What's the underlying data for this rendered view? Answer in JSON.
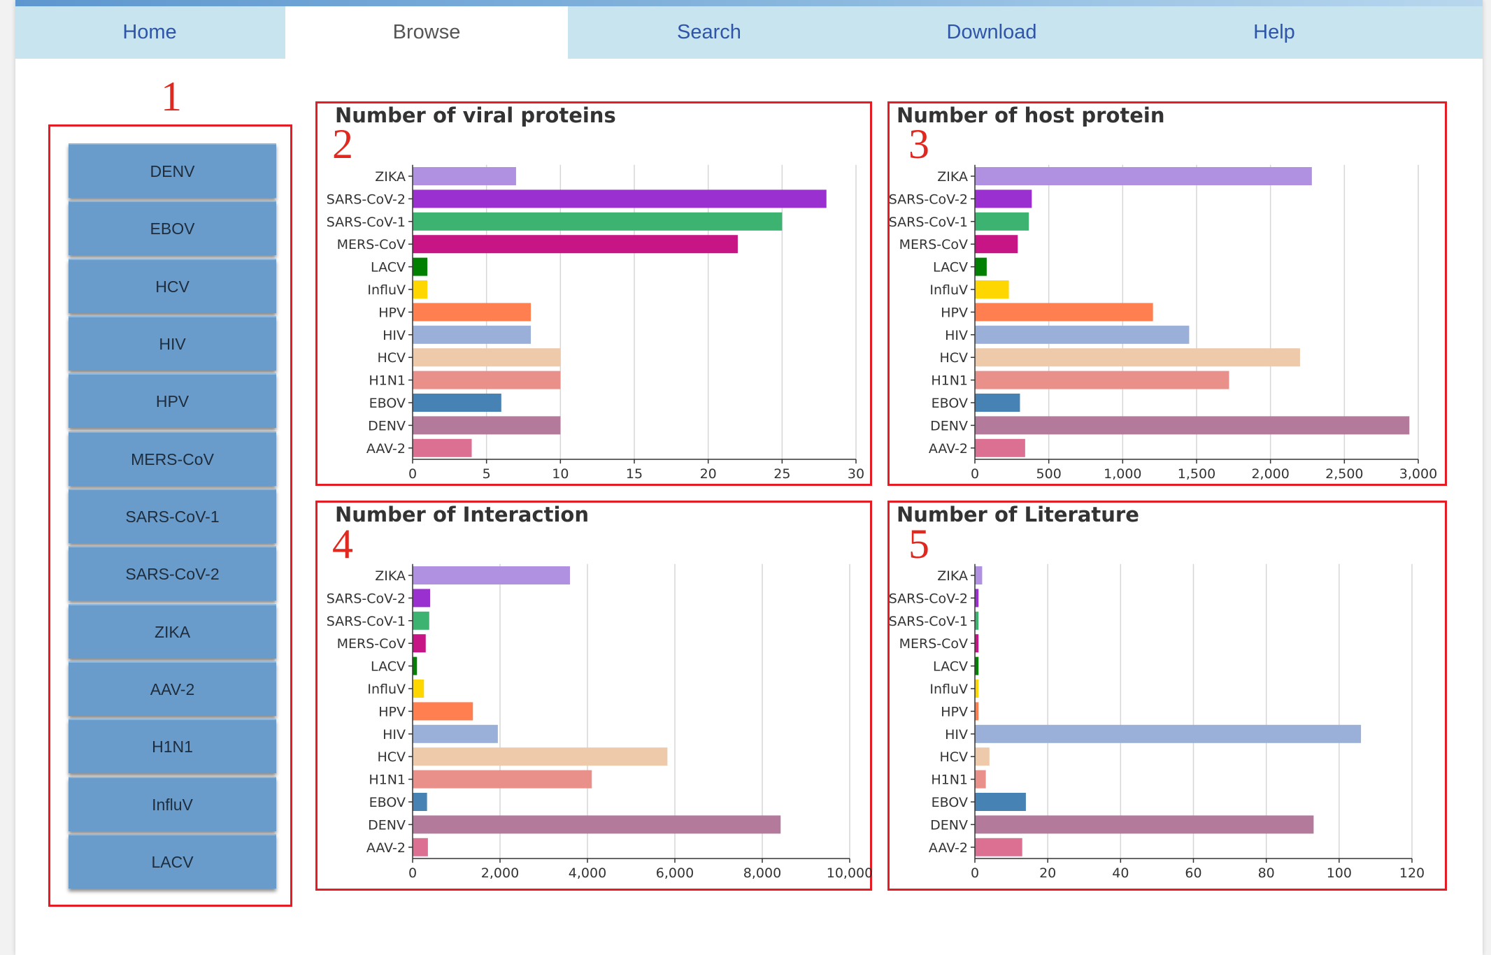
{
  "nav": {
    "tabs": [
      {
        "label": "Home",
        "active": false
      },
      {
        "label": "Browse",
        "active": true
      },
      {
        "label": "Search",
        "active": false
      },
      {
        "label": "Download",
        "active": false
      },
      {
        "label": "Help",
        "active": false
      }
    ]
  },
  "annotations": [
    "1",
    "2",
    "3",
    "4",
    "5"
  ],
  "sidebar": {
    "buttons": [
      "DENV",
      "EBOV",
      "HCV",
      "HIV",
      "HPV",
      "MERS-CoV",
      "SARS-CoV-1",
      "SARS-CoV-2",
      "ZIKA",
      "AAV-2",
      "H1N1",
      "InfluV",
      "LACV"
    ]
  },
  "colors": {
    "accent_red": "#e51c23",
    "tab_bg": "#c7e4ef",
    "tab_text": "#2f55a8",
    "button_bg": "#6a9ccb",
    "series": {
      "ZIKA": "#b090e0",
      "SARS-CoV-2": "#9b30d0",
      "SARS-CoV-1": "#3cb371",
      "MERS-CoV": "#c71585",
      "LACV": "#008000",
      "InfluV": "#ffd700",
      "HPV": "#ff7f50",
      "HIV": "#9ab0d8",
      "HCV": "#eecaaa",
      "H1N1": "#e9908a",
      "EBOV": "#4682b4",
      "DENV": "#b47a9c",
      "AAV-2": "#db7093"
    }
  },
  "chart_data": [
    {
      "type": "bar",
      "orientation": "horizontal",
      "title": "Number of viral proteins",
      "categories": [
        "ZIKA",
        "SARS-CoV-2",
        "SARS-CoV-1",
        "MERS-CoV",
        "LACV",
        "InfluV",
        "HPV",
        "HIV",
        "HCV",
        "H1N1",
        "EBOV",
        "DENV",
        "AAV-2"
      ],
      "values": [
        7,
        28,
        25,
        22,
        1,
        1,
        8,
        8,
        10,
        10,
        6,
        10,
        4
      ],
      "xlim": [
        0,
        30
      ],
      "ticks": [
        0,
        5,
        10,
        15,
        20,
        25,
        30
      ],
      "tick_labels": [
        "0",
        "5",
        "10",
        "15",
        "20",
        "25",
        "30"
      ],
      "grid": true
    },
    {
      "type": "bar",
      "orientation": "horizontal",
      "title": "Number of host protein",
      "categories": [
        "ZIKA",
        "SARS-CoV-2",
        "SARS-CoV-1",
        "MERS-CoV",
        "LACV",
        "InfluV",
        "HPV",
        "HIV",
        "HCV",
        "H1N1",
        "EBOV",
        "DENV",
        "AAV-2"
      ],
      "values": [
        2280,
        385,
        365,
        290,
        80,
        230,
        1205,
        1450,
        2200,
        1720,
        305,
        2940,
        340
      ],
      "xlim": [
        0,
        3000
      ],
      "ticks": [
        0,
        500,
        1000,
        1500,
        2000,
        2500,
        3000
      ],
      "tick_labels": [
        "0",
        "500",
        "1,000",
        "1,500",
        "2,000",
        "2,500",
        "3,000"
      ],
      "grid": true
    },
    {
      "type": "bar",
      "orientation": "horizontal",
      "title": "Number of Interaction",
      "categories": [
        "ZIKA",
        "SARS-CoV-2",
        "SARS-CoV-1",
        "MERS-CoV",
        "LACV",
        "InfluV",
        "HPV",
        "HIV",
        "HCV",
        "H1N1",
        "EBOV",
        "DENV",
        "AAV-2"
      ],
      "values": [
        3600,
        400,
        380,
        300,
        100,
        260,
        1380,
        1950,
        5830,
        4100,
        330,
        8420,
        350
      ],
      "xlim": [
        0,
        10000
      ],
      "ticks": [
        0,
        2000,
        4000,
        6000,
        8000,
        10000
      ],
      "tick_labels": [
        "0",
        "2,000",
        "4,000",
        "6,000",
        "8,000",
        "10,000"
      ],
      "grid": true
    },
    {
      "type": "bar",
      "orientation": "horizontal",
      "title": "Number of Literature",
      "categories": [
        "ZIKA",
        "SARS-CoV-2",
        "SARS-CoV-1",
        "MERS-CoV",
        "LACV",
        "InfluV",
        "HPV",
        "HIV",
        "HCV",
        "H1N1",
        "EBOV",
        "DENV",
        "AAV-2"
      ],
      "values": [
        2,
        1,
        1,
        1,
        1,
        1,
        1,
        106,
        4,
        3,
        14,
        93,
        13
      ],
      "xlim": [
        0,
        120
      ],
      "ticks": [
        0,
        20,
        40,
        60,
        80,
        100,
        120
      ],
      "tick_labels": [
        "0",
        "20",
        "40",
        "60",
        "80",
        "100",
        "120"
      ],
      "grid": true
    }
  ]
}
